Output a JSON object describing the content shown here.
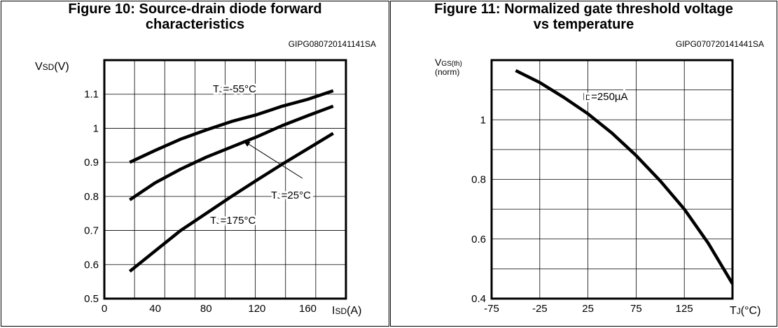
{
  "chart_data": [
    {
      "type": "line",
      "title": "Figure 10: Source-drain diode forward",
      "subtitle": "characteristics",
      "code": "GIPG080720141141SA",
      "ylabel": {
        "main": "V",
        "sub": "SD",
        "unit": "(V)"
      },
      "xlabel": {
        "main": "I",
        "sub": "SD",
        "unit": "(A)"
      },
      "xlim": [
        0,
        190
      ],
      "ylim": [
        0.5,
        1.2
      ],
      "xticks": [
        "0",
        "40",
        "80",
        "120",
        "160"
      ],
      "xtick_values": [
        0,
        40,
        80,
        120,
        160
      ],
      "yticks": [
        "0.5",
        "0.6",
        "0.7",
        "0.8",
        "0.9",
        "1",
        "1.1"
      ],
      "ytick_values": [
        0.5,
        0.6,
        0.7,
        0.8,
        0.9,
        1.0,
        1.1
      ],
      "grid": true,
      "series": [
        {
          "x": [
            20,
            40,
            60,
            80,
            100,
            120,
            140,
            160,
            180
          ],
          "y": [
            0.9,
            0.935,
            0.968,
            0.995,
            1.02,
            1.04,
            1.065,
            1.085,
            1.11
          ]
        },
        {
          "x": [
            20,
            40,
            60,
            80,
            100,
            120,
            140,
            160,
            180
          ],
          "y": [
            0.79,
            0.84,
            0.88,
            0.915,
            0.945,
            0.975,
            1.008,
            1.037,
            1.065
          ]
        },
        {
          "x": [
            20,
            40,
            60,
            80,
            100,
            120,
            140,
            160,
            180
          ],
          "y": [
            0.58,
            0.64,
            0.7,
            0.75,
            0.8,
            0.848,
            0.895,
            0.94,
            0.985
          ]
        }
      ],
      "annotations": [
        {
          "main": "T",
          "sub": "J",
          "rest": "=-55°C"
        },
        {
          "main": "T",
          "sub": "J",
          "rest": "=25°C"
        },
        {
          "main": "T",
          "sub": "J",
          "rest": "=175°C"
        }
      ]
    },
    {
      "type": "line",
      "title": "Figure 11: Normalized gate threshold voltage",
      "subtitle": "vs temperature",
      "code": "GIPG070720141441SA",
      "ylabel": {
        "main": "V",
        "sub": "GS(th)",
        "line2": "(norm)"
      },
      "xlabel": {
        "main": "T",
        "sub": "J",
        "unit": "(°C)"
      },
      "xlim": [
        -75,
        175
      ],
      "ylim": [
        0.4,
        1.2
      ],
      "xticks": [
        "-75",
        "-25",
        "25",
        "75",
        "125"
      ],
      "xtick_values": [
        -75,
        -25,
        25,
        75,
        125
      ],
      "yticks": [
        "0.4",
        "0.6",
        "0.8",
        "1"
      ],
      "ytick_values": [
        0.4,
        0.6,
        0.8,
        1.0
      ],
      "grid": true,
      "series": [
        {
          "x": [
            -50,
            -25,
            0,
            25,
            50,
            75,
            100,
            125,
            150,
            175
          ],
          "y": [
            1.165,
            1.125,
            1.075,
            1.02,
            0.955,
            0.88,
            0.795,
            0.7,
            0.585,
            0.45
          ]
        }
      ],
      "annotations": [
        {
          "main": "I",
          "sub": "D",
          "rest": "=250µA"
        }
      ]
    }
  ]
}
